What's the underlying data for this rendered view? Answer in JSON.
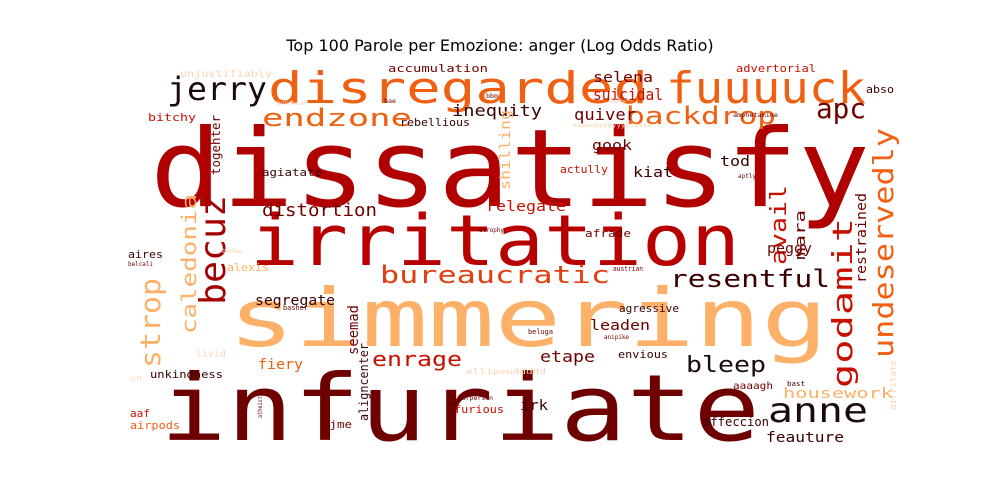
{
  "title": "Top 100 Parole per Emozione: anger (Log Odds Ratio)",
  "palette": {
    "background": "#ffffff",
    "dark": "#6e0000",
    "red": "#b00000",
    "bright": "#d42000",
    "orange": "#f06010",
    "light": "#fdb470",
    "pale": "#fcd3b0"
  },
  "words": [
    {
      "text": "dissatisfy",
      "color": "#b00000"
    },
    {
      "text": "infuriate",
      "color": "#6e0000"
    },
    {
      "text": "simmering",
      "color": "#fdb067"
    },
    {
      "text": "irritation",
      "color": "#b80000"
    },
    {
      "text": "disregarded",
      "color": "#f06010"
    },
    {
      "text": "fuuuuck",
      "color": "#f06010"
    },
    {
      "text": "jerry",
      "color": "#1a0a0a"
    },
    {
      "text": "becuz",
      "color": "#a50000"
    },
    {
      "text": "endzone",
      "color": "#f06010"
    },
    {
      "text": "backdrop",
      "color": "#f06010"
    },
    {
      "text": "apc",
      "color": "#6e0000"
    },
    {
      "text": "undeservedly",
      "color": "#f06010"
    },
    {
      "text": "godamit",
      "color": "#c81000"
    },
    {
      "text": "anne",
      "color": "#1a0a0a"
    },
    {
      "text": "bureaucratic",
      "color": "#e04010"
    },
    {
      "text": "resentful",
      "color": "#3a0000"
    },
    {
      "text": "strop",
      "color": "#fdb067"
    },
    {
      "text": "enrage",
      "color": "#c81000"
    },
    {
      "text": "bleep",
      "color": "#1a0a0a"
    },
    {
      "text": "avail",
      "color": "#c81000"
    },
    {
      "text": "caledonia",
      "color": "#fdb067"
    },
    {
      "text": "distortion",
      "color": "#6e0000"
    },
    {
      "text": "selena",
      "color": "#6e0000"
    },
    {
      "text": "suicidal",
      "color": "#c81000"
    },
    {
      "text": "inequity",
      "color": "#3a0000"
    },
    {
      "text": "quiver",
      "color": "#6e0000"
    },
    {
      "text": "accumulation",
      "color": "#6e0000"
    },
    {
      "text": "advertorial",
      "color": "#c81000"
    },
    {
      "text": "etape",
      "color": "#6e0000"
    },
    {
      "text": "relegate",
      "color": "#c81000"
    },
    {
      "text": "restrained",
      "color": "#6e0000"
    },
    {
      "text": "mara",
      "color": "#6e0000"
    },
    {
      "text": "peggy",
      "color": "#6e0000"
    },
    {
      "text": "segregate",
      "color": "#3a0000"
    },
    {
      "text": "seemad",
      "color": "#6e0000"
    },
    {
      "text": "fiery",
      "color": "#f06010"
    },
    {
      "text": "leaden",
      "color": "#6e0000"
    },
    {
      "text": "housework",
      "color": "#fdb067"
    },
    {
      "text": "feauture",
      "color": "#3a0000"
    },
    {
      "text": "affeccion",
      "color": "#3a0000"
    },
    {
      "text": "furious",
      "color": "#c81000"
    },
    {
      "text": "irk",
      "color": "#3a0000"
    },
    {
      "text": "gook",
      "color": "#6e0000"
    },
    {
      "text": "kiat",
      "color": "#3a0000"
    },
    {
      "text": "tod",
      "color": "#3a0000"
    },
    {
      "text": "shilling",
      "color": "#fdb067"
    },
    {
      "text": "togehter",
      "color": "#6e0000"
    },
    {
      "text": "agiatate",
      "color": "#3a0000"
    },
    {
      "text": "actully",
      "color": "#c81000"
    },
    {
      "text": "afrade",
      "color": "#6e0000"
    },
    {
      "text": "unkindness",
      "color": "#3a0000"
    },
    {
      "text": "aaf",
      "color": "#c81000"
    },
    {
      "text": "airpods",
      "color": "#f06010"
    },
    {
      "text": "ajme",
      "color": "#6e0000"
    },
    {
      "text": "aires",
      "color": "#3a0000"
    },
    {
      "text": "alexis",
      "color": "#fdb067"
    },
    {
      "text": "aligncenter",
      "color": "#3a0000"
    },
    {
      "text": "agressive",
      "color": "#3a0000"
    },
    {
      "text": "envious",
      "color": "#3a0000"
    },
    {
      "text": "aaaagh",
      "color": "#6e0000"
    },
    {
      "text": "bitchy",
      "color": "#c81000"
    },
    {
      "text": "rebellious",
      "color": "#3a0000"
    },
    {
      "text": "unjustifiably",
      "color": "#fcd3b0"
    },
    {
      "text": "abso",
      "color": "#3a0000"
    },
    {
      "text": "livid",
      "color": "#fcd3b0"
    },
    {
      "text": "airritate",
      "color": "#fcd3b0"
    },
    {
      "text": "bast",
      "color": "#3a0000"
    },
    {
      "text": "beluga",
      "color": "#6e0000"
    },
    {
      "text": "anipike",
      "color": "#6e0000"
    },
    {
      "text": "austrian",
      "color": "#6e0000"
    },
    {
      "text": "atrophy",
      "color": "#6e0000"
    },
    {
      "text": "basher",
      "color": "#6e0000"
    },
    {
      "text": "barperson",
      "color": "#6e0000"
    },
    {
      "text": "atheists",
      "color": "#6e0000"
    },
    {
      "text": "biff",
      "color": "#fcd3b0"
    },
    {
      "text": "aptly",
      "color": "#6e0000"
    },
    {
      "text": "amphetamine",
      "color": "#6e0000"
    },
    {
      "text": "bbm",
      "color": "#6e0000"
    },
    {
      "text": "baby",
      "color": "#fcd3b0"
    },
    {
      "text": "bae",
      "color": "#6e0000"
    },
    {
      "text": "burdnsun",
      "color": "#fcd3b0"
    },
    {
      "text": "belcali",
      "color": "#6e0000"
    },
    {
      "text": "bedaw",
      "color": "#fcd3b0"
    },
    {
      "text": "ellipeuddddd",
      "color": "#fcd3b0"
    },
    {
      "text": "aaaaayyyyyyyysssss",
      "color": "#fcd3b0"
    }
  ]
}
